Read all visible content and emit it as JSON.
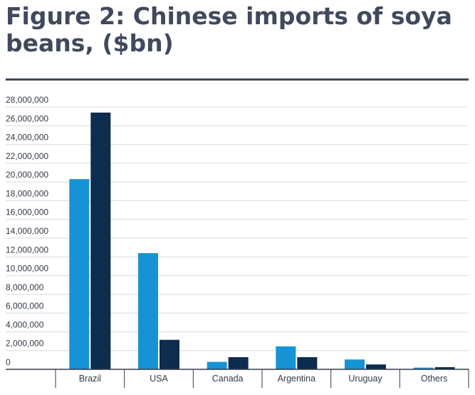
{
  "title": "Figure 2: Chinese imports of soya beans, ($bn)",
  "colors": {
    "series_a": "#1793d5",
    "series_b": "#0d2c4e",
    "grid": "#d9d9d9",
    "axis": "#333a46"
  },
  "chart_data": {
    "type": "bar",
    "title": "Figure 2: Chinese imports of soya beans, ($bn)",
    "categories": [
      "Brazil",
      "USA",
      "Canada",
      "Argentina",
      "Uruguay",
      "Others"
    ],
    "series": [
      {
        "values": [
          20300000,
          12400000,
          800000,
          2450000,
          1050000,
          180000
        ]
      },
      {
        "values": [
          27400000,
          3150000,
          1300000,
          1300000,
          520000,
          230000
        ]
      }
    ],
    "ylim": [
      0,
      28000000
    ],
    "yticks": [
      0,
      2000000,
      4000000,
      6000000,
      8000000,
      10000000,
      12000000,
      14000000,
      16000000,
      18000000,
      20000000,
      22000000,
      24000000,
      26000000,
      28000000
    ],
    "grid": true,
    "legend": "none"
  }
}
